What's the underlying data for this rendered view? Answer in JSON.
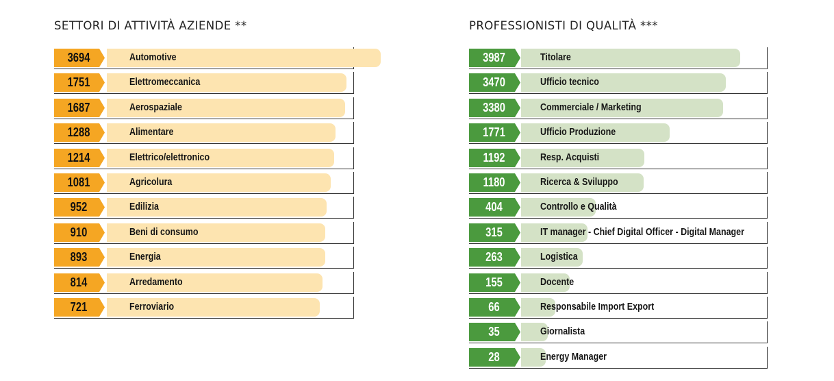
{
  "chart_data": [
    {
      "type": "bar",
      "title": "SETTORI DI ATTIVITÀ AZIENDE **",
      "categories": [
        "Automotive",
        "Elettromeccanica",
        "Aerospaziale",
        "Alimentare",
        "Elettrico/elettronico",
        "Agricolura",
        "Edilizia",
        "Beni di consumo",
        "Energia",
        "Arredamento",
        "Ferroviario"
      ],
      "values": [
        3694,
        1751,
        1687,
        1288,
        1214,
        1081,
        952,
        910,
        893,
        814,
        721
      ],
      "colors": {
        "badge": "#f5a623",
        "bar": "#fde4b0"
      }
    },
    {
      "type": "bar",
      "title": "PROFESSIONISTI DI QUALITÀ ***",
      "categories": [
        "Titolare",
        "Ufficio tecnico",
        "Commerciale / Marketing",
        "Ufficio Produzione",
        "Resp. Acquisti",
        "Ricerca & Sviluppo",
        "Controllo e Qualità",
        "IT manager - Chief Digital Officer - Digital Manager",
        "Logistica",
        "Docente",
        "Responsabile Import Export",
        "Giornalista",
        "Energy Manager"
      ],
      "values": [
        3987,
        3470,
        3380,
        1771,
        1192,
        1180,
        404,
        315,
        263,
        155,
        66,
        35,
        28
      ],
      "colors": {
        "badge": "#4b9a3e",
        "bar": "#d4e2c6"
      }
    }
  ]
}
